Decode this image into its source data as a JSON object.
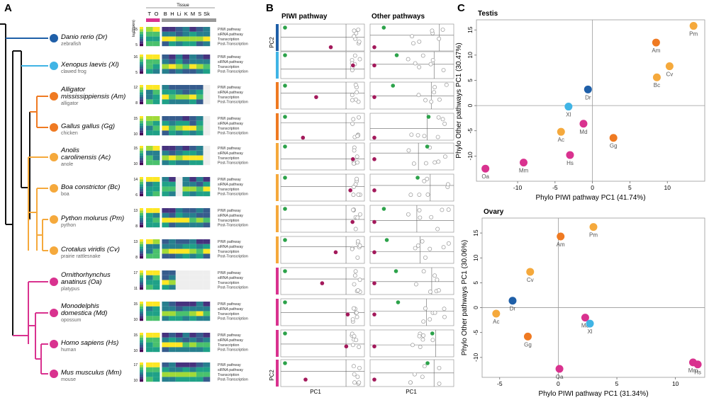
{
  "panel_labels": {
    "a": "A",
    "b": "B",
    "c": "C"
  },
  "colors": {
    "fish": "#1f5fa8",
    "frog": "#40b4e5",
    "croc": "#ef7a22",
    "reptile": "#f5a93c",
    "mammal": "#d9328f",
    "tree_root": "#111111",
    "rowline": "#bbbbbb"
  },
  "species": [
    {
      "name": "Danio rerio (Dr)",
      "common": "zebrafish",
      "clade": "fish"
    },
    {
      "name": "Xenopus laevis (Xl)",
      "common": "clawed frog",
      "clade": "frog"
    },
    {
      "name": "Alligator",
      "name2": "mississippiensis (Am)",
      "common": "alligator",
      "clade": "croc"
    },
    {
      "name": "Gallus gallus (Gg)",
      "common": "chicken",
      "clade": "croc"
    },
    {
      "name": "Anolis",
      "name2": "carolinensis (Ac)",
      "common": "anole",
      "clade": "reptile"
    },
    {
      "name": "Boa constrictor (Bc)",
      "common": "boa",
      "clade": "reptile"
    },
    {
      "name": "Python molurus (Pm)",
      "common": "python",
      "clade": "reptile"
    },
    {
      "name": "Crotalus viridis (Cv)",
      "common": "prairie rattlesnake",
      "clade": "reptile"
    },
    {
      "name": "Ornithorhynchus",
      "name2": "anatinus (Oa)",
      "common": "platypus",
      "clade": "mammal"
    },
    {
      "name": "Monodelphis",
      "name2": "domestica (Md)",
      "common": "opossum",
      "clade": "mammal"
    },
    {
      "name": "Homo sapiens (Hs)",
      "common": "human",
      "clade": "mammal"
    },
    {
      "name": "Mus musculus (Mm)",
      "common": "mouse",
      "clade": "mammal"
    }
  ],
  "heatmap": {
    "tissue_title": "Tissue",
    "tissues": [
      "T",
      "O",
      "B",
      "H",
      "Li",
      "K",
      "M",
      "S",
      "Sk"
    ],
    "scale_label": "log2(fpkm)",
    "scale_ticks": [
      [
        "15",
        "5"
      ],
      [
        "16",
        "5"
      ],
      [
        "12",
        "8"
      ],
      [
        "15",
        "10"
      ],
      [
        "15",
        "10"
      ],
      [
        "14",
        "6"
      ],
      [
        "13",
        "8"
      ],
      [
        "13",
        "8"
      ],
      [
        "17",
        "11"
      ],
      [
        "15",
        "10"
      ],
      [
        "15",
        "10"
      ],
      [
        "17",
        "10"
      ]
    ],
    "rows": [
      "PIWI pathway",
      "siRNA pathway",
      "Transcription",
      "Post-Transcription"
    ],
    "missing": [
      [],
      [],
      [
        "Sk"
      ],
      [
        "Sk"
      ],
      [
        "Sk"
      ],
      [
        "Li"
      ],
      [],
      [],
      [
        "Li",
        "K",
        "M",
        "S",
        "Sk"
      ],
      [],
      [],
      []
    ]
  },
  "panel_b": {
    "piwi_title": "PIWI pathway",
    "other_title": "Other pathways",
    "xlabel_left": "PC1",
    "xlabel_right": "PC1",
    "ylabel_top": "PC2",
    "ylabel_bottom": "PC2"
  },
  "chart_data": [
    {
      "type": "scatter",
      "title": "Testis",
      "xlabel": "Phylo PIWI pathway PC1 (41.74%)",
      "ylabel": "Phylo Other pathways PC1 (30.47%)",
      "xlim": [
        -15.5,
        15
      ],
      "ylim": [
        -15,
        17
      ],
      "xticks": [
        -10,
        -5,
        0,
        5,
        10
      ],
      "yticks": [
        -10,
        -5,
        0,
        5,
        10,
        15
      ],
      "points": [
        {
          "label": "Pm",
          "x": 13.5,
          "y": 15.8,
          "clade": "reptile"
        },
        {
          "label": "Am",
          "x": 8.5,
          "y": 12.5,
          "clade": "croc"
        },
        {
          "label": "Cv",
          "x": 10.3,
          "y": 7.8,
          "clade": "reptile"
        },
        {
          "label": "Bc",
          "x": 8.6,
          "y": 5.6,
          "clade": "reptile"
        },
        {
          "label": "Dr",
          "x": -0.6,
          "y": 3.2,
          "clade": "fish"
        },
        {
          "label": "Xl",
          "x": -3.2,
          "y": -0.2,
          "clade": "frog"
        },
        {
          "label": "Md",
          "x": -1.2,
          "y": -3.6,
          "clade": "mammal"
        },
        {
          "label": "Ac",
          "x": -4.2,
          "y": -5.2,
          "clade": "reptile"
        },
        {
          "label": "Gg",
          "x": 2.8,
          "y": -6.4,
          "clade": "croc"
        },
        {
          "label": "Hs",
          "x": -3.0,
          "y": -9.8,
          "clade": "mammal"
        },
        {
          "label": "Mm",
          "x": -9.2,
          "y": -11.3,
          "clade": "mammal"
        },
        {
          "label": "Oa",
          "x": -14.3,
          "y": -12.5,
          "clade": "mammal"
        }
      ]
    },
    {
      "type": "scatter",
      "title": "Ovary",
      "xlabel": "Phylo PIWI pathway PC1 (31.34%)",
      "ylabel": "Phylo Other pathways PC1 (30.06%)",
      "xlim": [
        -6.5,
        12.5
      ],
      "ylim": [
        -14,
        18
      ],
      "xticks": [
        -5,
        0,
        5,
        10
      ],
      "yticks": [
        -10,
        -5,
        0,
        5,
        10,
        15
      ],
      "points": [
        {
          "label": "Pm",
          "x": 3.0,
          "y": 16.2,
          "clade": "reptile"
        },
        {
          "label": "Am",
          "x": 0.2,
          "y": 14.3,
          "clade": "croc"
        },
        {
          "label": "Cv",
          "x": -2.4,
          "y": 7.2,
          "clade": "reptile"
        },
        {
          "label": "Dr",
          "x": -3.9,
          "y": 1.4,
          "clade": "fish"
        },
        {
          "label": "Ac",
          "x": -5.3,
          "y": -1.2,
          "clade": "reptile"
        },
        {
          "label": "Md",
          "x": 2.3,
          "y": -2.0,
          "clade": "mammal"
        },
        {
          "label": "Xl",
          "x": 2.7,
          "y": -3.2,
          "clade": "frog"
        },
        {
          "label": "Gg",
          "x": -2.6,
          "y": -5.8,
          "clade": "croc"
        },
        {
          "label": "Oa",
          "x": 0.1,
          "y": -12.3,
          "clade": "mammal"
        },
        {
          "label": "Mm",
          "x": 11.5,
          "y": -11.0,
          "clade": "mammal"
        },
        {
          "label": "Hs",
          "x": 11.9,
          "y": -11.4,
          "clade": "mammal"
        }
      ]
    }
  ]
}
